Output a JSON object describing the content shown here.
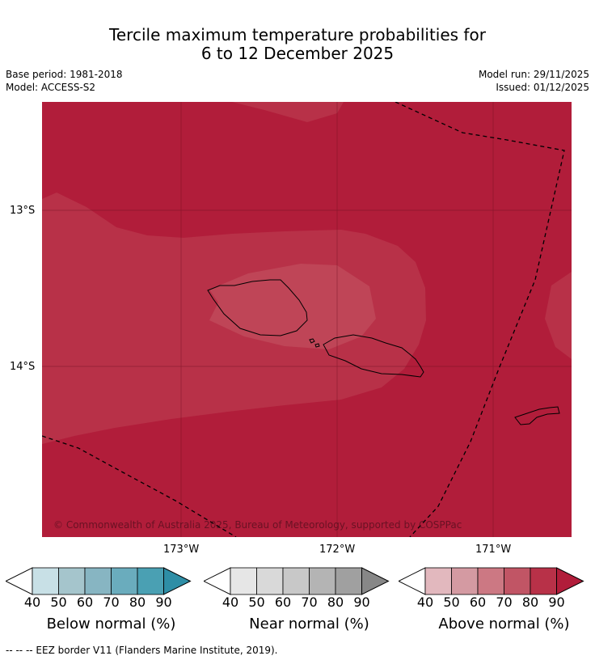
{
  "title": {
    "line1": "Tercile maximum temperature probabilities for",
    "line2": "6 to 12 December 2025"
  },
  "meta": {
    "base_period": "Base period: 1981-2018",
    "model": "Model: ACCESS-S2",
    "model_run": "Model run: 29/11/2025",
    "issued": "Issued: 01/12/2025"
  },
  "map": {
    "lat_ticks": [
      "13°S",
      "14°S"
    ],
    "lon_ticks": [
      "173°W",
      "172°W",
      "171°W"
    ],
    "copyright": "© Commonwealth of Australia 2025, Bureau of Meteorology, supported by COSPPac",
    "colors": {
      "above_90": "#b11d3a",
      "above_80": "#b83148",
      "above_70": "#bf4557",
      "border": "#000000"
    }
  },
  "colorbars": [
    {
      "label": "Below normal (%)",
      "ticks": [
        "40",
        "50",
        "60",
        "70",
        "80",
        "90"
      ],
      "colors": [
        "#c8e0e6",
        "#a5c5cc",
        "#87b5c2",
        "#6aacbd",
        "#4aa0b3",
        "#2e8ea6"
      ]
    },
    {
      "label": "Near normal (%)",
      "ticks": [
        "40",
        "50",
        "60",
        "70",
        "80",
        "90"
      ],
      "colors": [
        "#e6e6e6",
        "#d9d9d9",
        "#c8c8c8",
        "#b4b4b4",
        "#a0a0a0",
        "#878787"
      ]
    },
    {
      "label": "Above normal (%)",
      "ticks": [
        "40",
        "50",
        "60",
        "70",
        "80",
        "90"
      ],
      "colors": [
        "#e2b8be",
        "#d49aa2",
        "#cc7883",
        "#c15565",
        "#b83148",
        "#b11d3a"
      ]
    }
  ],
  "footnote": "--  --  -- EEZ border V11 (Flanders Marine Institute, 2019)."
}
